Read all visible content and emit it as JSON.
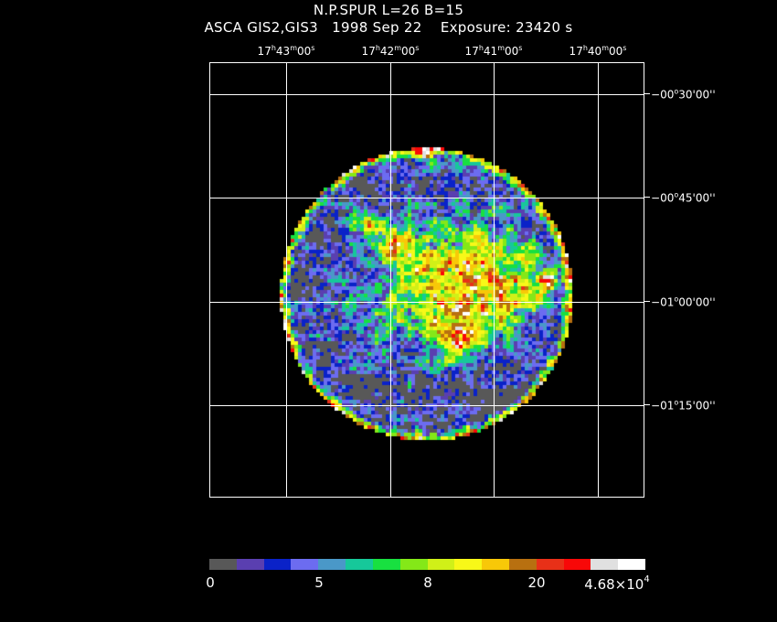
{
  "header": {
    "line1": "N.P.SPUR L=26 B=15",
    "line2": "ASCA GIS2,GIS3   1998 Sep 22    Exposure: 23420 s"
  },
  "ra_ticks": [
    {
      "h": "17",
      "m": "43",
      "s": "00"
    },
    {
      "h": "17",
      "m": "42",
      "s": "00"
    },
    {
      "h": "17",
      "m": "41",
      "s": "00"
    },
    {
      "h": "17",
      "m": "40",
      "s": "00"
    }
  ],
  "dec_ticks": [
    {
      "sign": "−",
      "d": "00",
      "m": "30",
      "s": "00"
    },
    {
      "sign": "−",
      "d": "00",
      "m": "45",
      "s": "00"
    },
    {
      "sign": "−",
      "d": "01",
      "m": "00",
      "s": "00"
    },
    {
      "sign": "−",
      "d": "01",
      "m": "15",
      "s": "00"
    }
  ],
  "colorbar": {
    "colors": [
      "#585858",
      "#5a3fb0",
      "#0a22c8",
      "#6c6cf0",
      "#4a98c8",
      "#16c89a",
      "#18e040",
      "#84e818",
      "#d0f018",
      "#f8f818",
      "#f8c808",
      "#b87010",
      "#e83018",
      "#f80808",
      "#e0e0e0",
      "#ffffff"
    ],
    "labels": {
      "l0": "0",
      "l5": "5",
      "l8": "8",
      "l20": "20",
      "lmax_mant": "4.68×10",
      "lmax_exp": "4"
    }
  }
}
